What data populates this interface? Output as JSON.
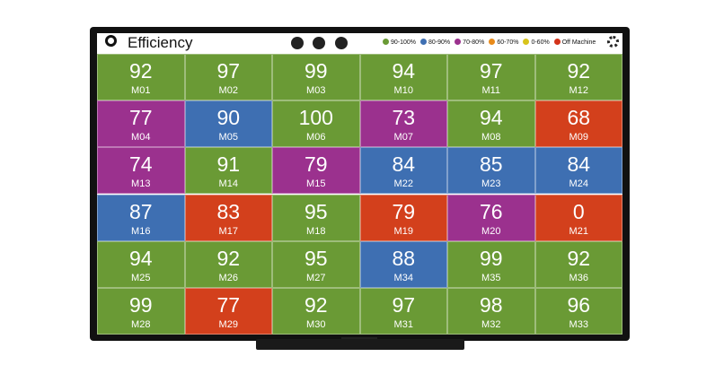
{
  "header": {
    "title": "Efficiency",
    "legend": [
      {
        "label": "90-100%",
        "color": "#6a9a35"
      },
      {
        "label": "80-90%",
        "color": "#3e6fb2"
      },
      {
        "label": "70-80%",
        "color": "#9b318e"
      },
      {
        "label": "60-70%",
        "color": "#e88a1a"
      },
      {
        "label": "0-60%",
        "color": "#d8c41c"
      },
      {
        "label": "Off Machine",
        "color": "#d3331a"
      }
    ]
  },
  "tiles": [
    [
      {
        "value": 92,
        "label": "M01",
        "color": "#6a9a35"
      },
      {
        "value": 97,
        "label": "M02",
        "color": "#6a9a35"
      },
      {
        "value": 99,
        "label": "M03",
        "color": "#6a9a35"
      },
      {
        "value": 94,
        "label": "M10",
        "color": "#6a9a35"
      },
      {
        "value": 97,
        "label": "M11",
        "color": "#6a9a35"
      },
      {
        "value": 92,
        "label": "M12",
        "color": "#6a9a35"
      }
    ],
    [
      {
        "value": 77,
        "label": "M04",
        "color": "#9b318e"
      },
      {
        "value": 90,
        "label": "M05",
        "color": "#3e6fb2"
      },
      {
        "value": 100,
        "label": "M06",
        "color": "#6a9a35"
      },
      {
        "value": 73,
        "label": "M07",
        "color": "#9b318e"
      },
      {
        "value": 94,
        "label": "M08",
        "color": "#6a9a35"
      },
      {
        "value": 68,
        "label": "M09",
        "color": "#d3401c"
      }
    ],
    [
      {
        "value": 74,
        "label": "M13",
        "color": "#9b318e"
      },
      {
        "value": 91,
        "label": "M14",
        "color": "#6a9a35"
      },
      {
        "value": 79,
        "label": "M15",
        "color": "#9b318e"
      },
      {
        "value": 84,
        "label": "M22",
        "color": "#3e6fb2"
      },
      {
        "value": 85,
        "label": "M23",
        "color": "#3e6fb2"
      },
      {
        "value": 84,
        "label": "M24",
        "color": "#3e6fb2"
      }
    ],
    [
      {
        "value": 87,
        "label": "M16",
        "color": "#3e6fb2"
      },
      {
        "value": 83,
        "label": "M17",
        "color": "#d3401c"
      },
      {
        "value": 95,
        "label": "M18",
        "color": "#6a9a35"
      },
      {
        "value": 79,
        "label": "M19",
        "color": "#d3401c"
      },
      {
        "value": 76,
        "label": "M20",
        "color": "#9b318e"
      },
      {
        "value": 0,
        "label": "M21",
        "color": "#d3401c"
      }
    ],
    [
      {
        "value": 94,
        "label": "M25",
        "color": "#6a9a35"
      },
      {
        "value": 92,
        "label": "M26",
        "color": "#6a9a35"
      },
      {
        "value": 95,
        "label": "M27",
        "color": "#6a9a35"
      },
      {
        "value": 88,
        "label": "M34",
        "color": "#3e6fb2"
      },
      {
        "value": 99,
        "label": "M35",
        "color": "#6a9a35"
      },
      {
        "value": 92,
        "label": "M36",
        "color": "#6a9a35"
      }
    ],
    [
      {
        "value": 99,
        "label": "M28",
        "color": "#6a9a35"
      },
      {
        "value": 77,
        "label": "M29",
        "color": "#d3401c"
      },
      {
        "value": 92,
        "label": "M30",
        "color": "#6a9a35"
      },
      {
        "value": 97,
        "label": "M31",
        "color": "#6a9a35"
      },
      {
        "value": 98,
        "label": "M32",
        "color": "#6a9a35"
      },
      {
        "value": 96,
        "label": "M33",
        "color": "#6a9a35"
      }
    ]
  ]
}
